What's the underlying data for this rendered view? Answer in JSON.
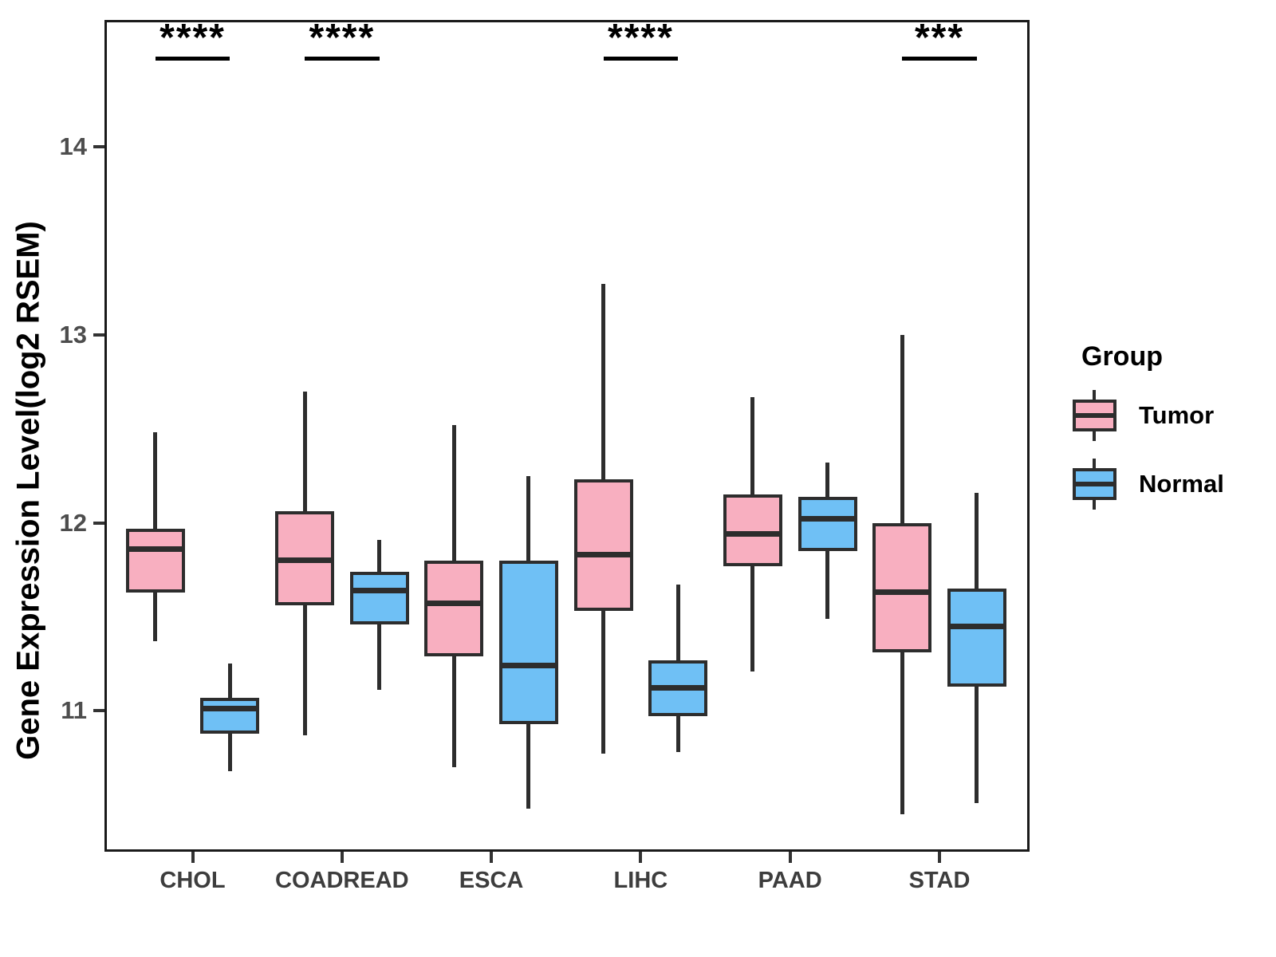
{
  "chart_data": {
    "type": "boxplot",
    "title": "",
    "xlabel": "",
    "ylabel": "Gene Expression Level(log2 RSEM)",
    "categories": [
      "CHOL",
      "COADREAD",
      "ESCA",
      "LIHC",
      "PAAD",
      "STAD"
    ],
    "yticks": [
      11,
      12,
      13,
      14
    ],
    "ylim": [
      10.25,
      14.675
    ],
    "grid": false,
    "colors": {
      "tumor": "#F8AFC0",
      "normal": "#6FC0F5",
      "box_border": "#2d2d2d"
    },
    "legend": {
      "title": "Group",
      "position": "right",
      "entries": [
        {
          "label": "Tumor",
          "color": "#F8AFC0"
        },
        {
          "label": "Normal",
          "color": "#6FC0F5"
        }
      ]
    },
    "series": [
      {
        "name": "Tumor",
        "color": "#F8AFC0",
        "boxes": [
          {
            "category": "CHOL",
            "whisker_low": 11.37,
            "q1": 11.63,
            "median": 11.86,
            "q3": 11.97,
            "whisker_high": 12.48
          },
          {
            "category": "COADREAD",
            "whisker_low": 10.87,
            "q1": 11.56,
            "median": 11.8,
            "q3": 12.06,
            "whisker_high": 12.7
          },
          {
            "category": "ESCA",
            "whisker_low": 10.7,
            "q1": 11.29,
            "median": 11.57,
            "q3": 11.8,
            "whisker_high": 12.52
          },
          {
            "category": "LIHC",
            "whisker_low": 10.77,
            "q1": 11.53,
            "median": 11.83,
            "q3": 12.23,
            "whisker_high": 13.27
          },
          {
            "category": "PAAD",
            "whisker_low": 11.21,
            "q1": 11.77,
            "median": 11.94,
            "q3": 12.15,
            "whisker_high": 12.67
          },
          {
            "category": "STAD",
            "whisker_low": 10.45,
            "q1": 11.31,
            "median": 11.63,
            "q3": 12.0,
            "whisker_high": 13.0
          }
        ]
      },
      {
        "name": "Normal",
        "color": "#6FC0F5",
        "boxes": [
          {
            "category": "CHOL",
            "whisker_low": 10.68,
            "q1": 10.88,
            "median": 11.01,
            "q3": 11.07,
            "whisker_high": 11.25
          },
          {
            "category": "COADREAD",
            "whisker_low": 11.11,
            "q1": 11.46,
            "median": 11.64,
            "q3": 11.74,
            "whisker_high": 11.91
          },
          {
            "category": "ESCA",
            "whisker_low": 10.48,
            "q1": 10.93,
            "median": 11.24,
            "q3": 11.8,
            "whisker_high": 12.25
          },
          {
            "category": "LIHC",
            "whisker_low": 10.78,
            "q1": 10.97,
            "median": 11.12,
            "q3": 11.27,
            "whisker_high": 11.67
          },
          {
            "category": "PAAD",
            "whisker_low": 11.49,
            "q1": 11.85,
            "median": 12.02,
            "q3": 12.14,
            "whisker_high": 12.32
          },
          {
            "category": "STAD",
            "whisker_low": 10.51,
            "q1": 11.13,
            "median": 11.45,
            "q3": 11.65,
            "whisker_high": 12.16
          }
        ]
      }
    ],
    "significance": [
      {
        "category": "CHOL",
        "label": "****"
      },
      {
        "category": "COADREAD",
        "label": "****"
      },
      {
        "category": "LIHC",
        "label": "****"
      },
      {
        "category": "STAD",
        "label": "***"
      }
    ]
  }
}
